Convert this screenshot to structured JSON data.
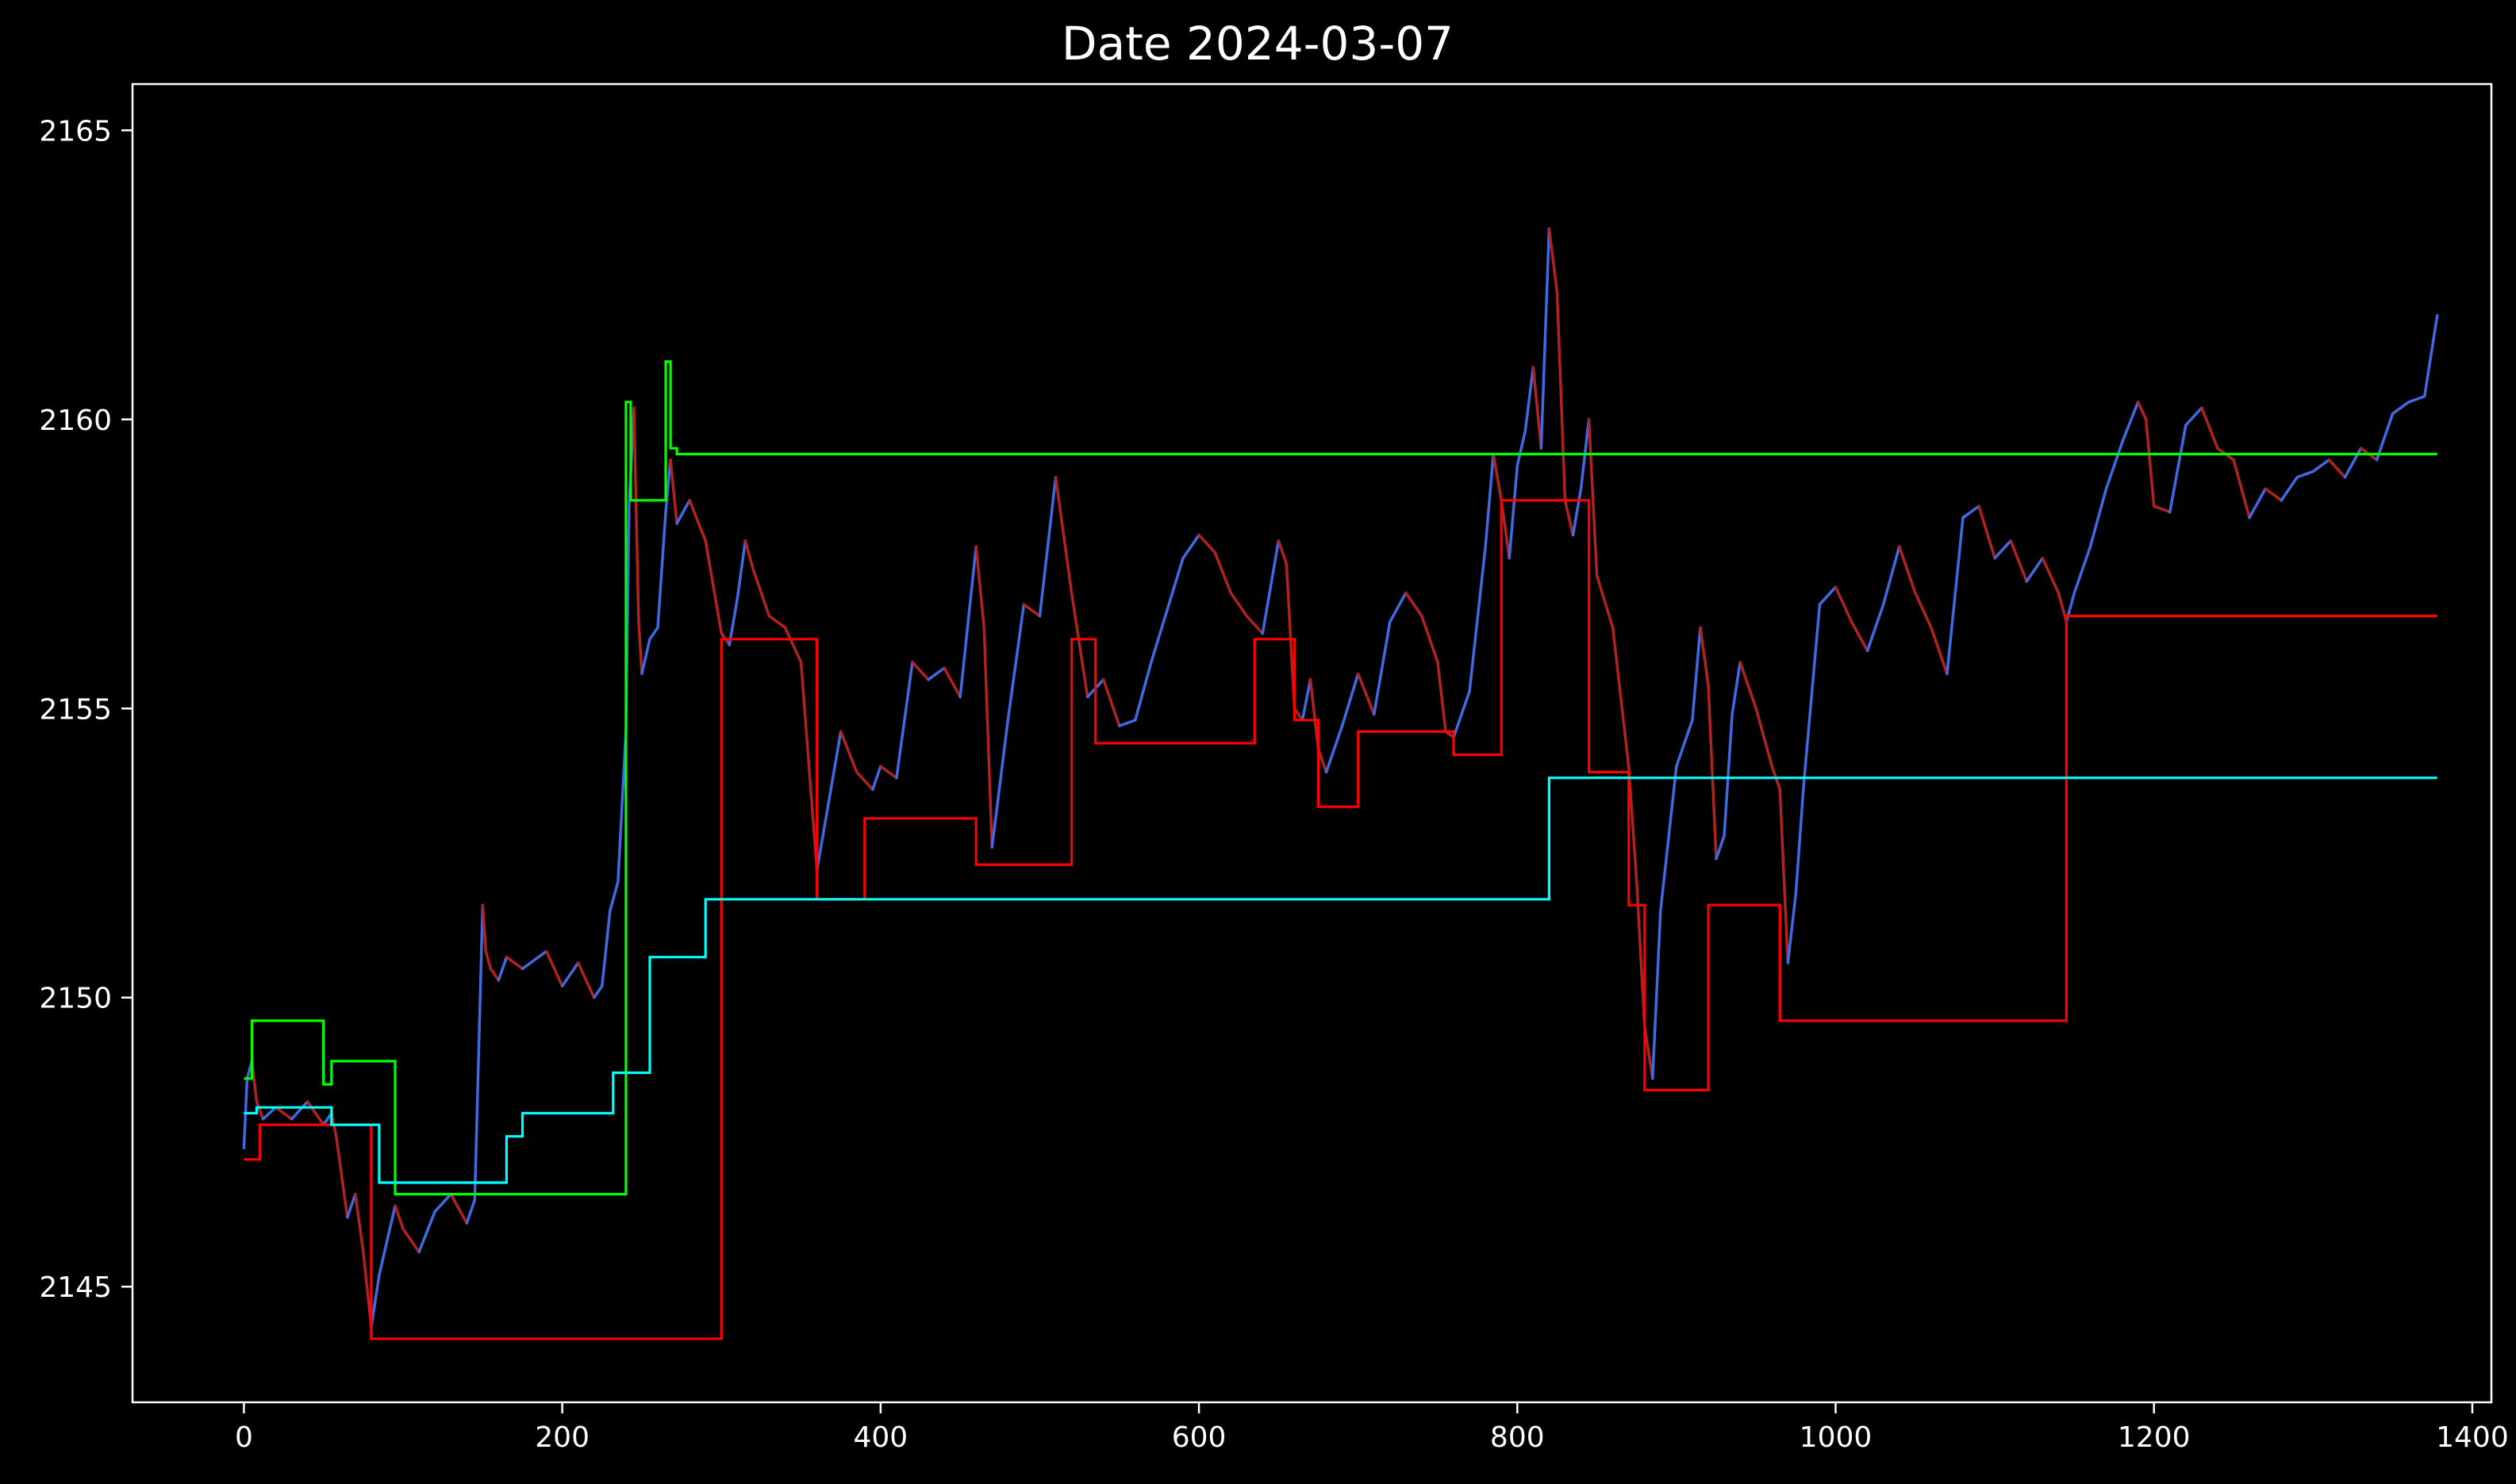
{
  "chart_data": {
    "type": "line",
    "title": "Date 2024-03-07",
    "xlabel": "",
    "ylabel": "",
    "xlim": [
      -70,
      1412
    ],
    "ylim": [
      2143.0,
      2165.8
    ],
    "x_ticks": [
      0,
      200,
      400,
      600,
      800,
      1000,
      1200,
      1400
    ],
    "y_ticks": [
      2145,
      2150,
      2155,
      2160,
      2165
    ],
    "grid": false,
    "legend": "none",
    "background": "#000000",
    "price_series": {
      "up_color": "#4169e1",
      "down_color": "#b22222",
      "x": [
        0,
        2,
        5,
        8,
        12,
        20,
        30,
        40,
        50,
        55,
        58,
        62,
        65,
        70,
        75,
        80,
        85,
        90,
        95,
        100,
        110,
        120,
        130,
        140,
        145,
        150,
        152,
        155,
        160,
        165,
        175,
        190,
        200,
        210,
        220,
        225,
        230,
        235,
        240,
        242,
        245,
        248,
        250,
        255,
        260,
        265,
        268,
        272,
        280,
        290,
        300,
        305,
        310,
        315,
        320,
        330,
        340,
        350,
        360,
        365,
        375,
        385,
        395,
        400,
        410,
        420,
        430,
        440,
        450,
        460,
        465,
        470,
        480,
        490,
        500,
        510,
        515,
        520,
        530,
        540,
        550,
        560,
        570,
        580,
        590,
        600,
        610,
        620,
        630,
        640,
        650,
        655,
        660,
        665,
        670,
        675,
        680,
        690,
        700,
        710,
        720,
        730,
        740,
        750,
        755,
        760,
        770,
        780,
        785,
        790,
        795,
        800,
        805,
        810,
        815,
        820,
        825,
        830,
        835,
        840,
        845,
        850,
        860,
        870,
        875,
        880,
        885,
        890,
        900,
        910,
        915,
        920,
        925,
        930,
        935,
        940,
        950,
        960,
        965,
        970,
        975,
        980,
        990,
        1000,
        1010,
        1020,
        1030,
        1040,
        1050,
        1060,
        1070,
        1080,
        1090,
        1100,
        1110,
        1120,
        1130,
        1140,
        1145,
        1150,
        1160,
        1170,
        1180,
        1190,
        1195,
        1200,
        1210,
        1220,
        1230,
        1240,
        1250,
        1260,
        1270,
        1280,
        1290,
        1300,
        1310,
        1320,
        1330,
        1340,
        1350,
        1360,
        1370,
        1378
      ],
      "y": [
        2147.4,
        2148.6,
        2148.9,
        2148.2,
        2147.9,
        2148.1,
        2147.9,
        2148.2,
        2147.8,
        2148.0,
        2147.6,
        2146.8,
        2146.2,
        2146.6,
        2145.6,
        2144.3,
        2145.2,
        2145.8,
        2146.4,
        2146.0,
        2145.6,
        2146.3,
        2146.6,
        2146.1,
        2146.5,
        2151.6,
        2150.8,
        2150.5,
        2150.3,
        2150.7,
        2150.5,
        2150.8,
        2150.2,
        2150.6,
        2150.0,
        2150.2,
        2151.5,
        2152.0,
        2154.6,
        2158.5,
        2160.2,
        2156.5,
        2155.6,
        2156.2,
        2156.4,
        2158.4,
        2159.3,
        2158.2,
        2158.6,
        2157.9,
        2156.3,
        2156.1,
        2156.9,
        2157.9,
        2157.4,
        2156.6,
        2156.4,
        2155.8,
        2152.2,
        2153.0,
        2154.6,
        2153.9,
        2153.6,
        2154.0,
        2153.8,
        2155.8,
        2155.5,
        2155.7,
        2155.2,
        2157.8,
        2156.4,
        2152.6,
        2154.8,
        2156.8,
        2156.6,
        2159.0,
        2158.0,
        2157.0,
        2155.2,
        2155.5,
        2154.7,
        2154.8,
        2155.8,
        2156.7,
        2157.6,
        2158.0,
        2157.7,
        2157.0,
        2156.6,
        2156.3,
        2157.9,
        2157.5,
        2155.0,
        2154.8,
        2155.5,
        2154.3,
        2153.9,
        2154.7,
        2155.6,
        2154.9,
        2156.5,
        2157.0,
        2156.6,
        2155.8,
        2154.6,
        2154.5,
        2155.3,
        2157.8,
        2159.4,
        2158.6,
        2157.6,
        2159.2,
        2159.8,
        2160.9,
        2159.5,
        2163.3,
        2162.2,
        2158.6,
        2158.0,
        2158.8,
        2160.0,
        2157.3,
        2156.4,
        2154.0,
        2152.0,
        2149.5,
        2148.6,
        2151.5,
        2154.0,
        2154.8,
        2156.4,
        2155.4,
        2152.4,
        2152.8,
        2154.9,
        2155.8,
        2155.0,
        2154.0,
        2153.6,
        2150.6,
        2151.8,
        2153.7,
        2156.8,
        2157.1,
        2156.5,
        2156.0,
        2156.8,
        2157.8,
        2157.0,
        2156.4,
        2155.6,
        2158.3,
        2158.5,
        2157.6,
        2157.9,
        2157.2,
        2157.6,
        2157.0,
        2156.5,
        2157.0,
        2157.8,
        2158.8,
        2159.6,
        2160.3,
        2160.0,
        2158.5,
        2158.4,
        2159.9,
        2160.2,
        2159.5,
        2159.3,
        2158.3,
        2158.8,
        2158.6,
        2159.0,
        2159.1,
        2159.3,
        2159.0,
        2159.5,
        2159.3,
        2160.1,
        2160.3,
        2160.4,
        2161.8
      ]
    },
    "series": [
      {
        "color": "#ff0000",
        "x": [
          0,
          10,
          10,
          80,
          80,
          300,
          300,
          360,
          360,
          390,
          390,
          460,
          460,
          520,
          520,
          535,
          535,
          635,
          635,
          660,
          660,
          675,
          675,
          700,
          700,
          760,
          760,
          790,
          790,
          845,
          845,
          870,
          870,
          880,
          880,
          920,
          920,
          965,
          965,
          1145,
          1145,
          1378
        ],
        "y": [
          2147.2,
          2147.2,
          2147.8,
          2147.8,
          2144.1,
          2144.1,
          2156.2,
          2156.2,
          2151.7,
          2151.7,
          2153.1,
          2153.1,
          2152.3,
          2152.3,
          2156.2,
          2156.2,
          2154.4,
          2154.4,
          2156.2,
          2156.2,
          2154.8,
          2154.8,
          2153.3,
          2153.3,
          2154.6,
          2154.6,
          2154.2,
          2154.2,
          2158.6,
          2158.6,
          2153.9,
          2153.9,
          2151.6,
          2151.6,
          2148.4,
          2148.4,
          2151.6,
          2151.6,
          2149.6,
          2149.6,
          2156.6,
          2156.6
        ]
      },
      {
        "color": "#00ff00",
        "x": [
          0,
          5,
          5,
          50,
          50,
          55,
          55,
          95,
          95,
          240,
          240,
          243,
          243,
          265,
          265,
          268,
          268,
          272,
          272,
          1378
        ],
        "y": [
          2148.6,
          2148.6,
          2149.6,
          2149.6,
          2148.5,
          2148.5,
          2148.9,
          2148.9,
          2146.6,
          2146.6,
          2160.3,
          2160.3,
          2158.6,
          2158.6,
          2161.0,
          2161.0,
          2159.5,
          2159.5,
          2159.4,
          2159.4
        ]
      },
      {
        "color": "#00ffff",
        "x": [
          0,
          8,
          8,
          55,
          55,
          85,
          85,
          165,
          165,
          175,
          175,
          232,
          232,
          255,
          255,
          290,
          290,
          820,
          820,
          1378
        ],
        "y": [
          2148.0,
          2148.0,
          2148.1,
          2148.1,
          2147.8,
          2147.8,
          2146.8,
          2146.8,
          2147.6,
          2147.6,
          2148.0,
          2148.0,
          2148.7,
          2148.7,
          2150.7,
          2150.7,
          2151.7,
          2151.7,
          2153.8,
          2153.8
        ]
      }
    ]
  }
}
